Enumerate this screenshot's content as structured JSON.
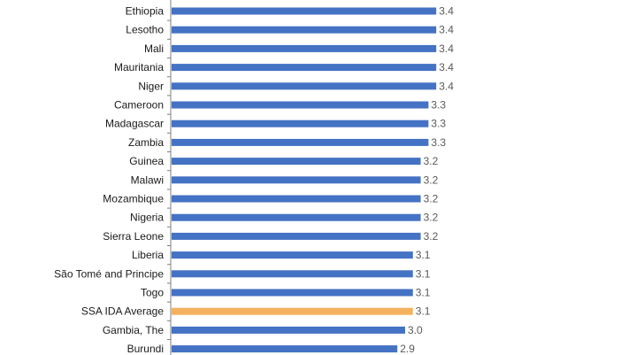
{
  "chart_data": {
    "type": "bar",
    "orientation": "horizontal",
    "categories": [
      "Ethiopia",
      "Lesotho",
      "Mali",
      "Mauritania",
      "Niger",
      "Cameroon",
      "Madagascar",
      "Zambia",
      "Guinea",
      "Malawi",
      "Mozambique",
      "Nigeria",
      "Sierra Leone",
      "Liberia",
      "São Tomé and Principe",
      "Togo",
      "SSA IDA Average",
      "Gambia, The",
      "Burundi"
    ],
    "values": [
      3.4,
      3.4,
      3.4,
      3.4,
      3.4,
      3.3,
      3.3,
      3.3,
      3.2,
      3.2,
      3.2,
      3.2,
      3.2,
      3.1,
      3.1,
      3.1,
      3.1,
      3.0,
      2.9
    ],
    "value_labels": [
      "3.4",
      "3.4",
      "3.4",
      "3.4",
      "3.4",
      "3.3",
      "3.3",
      "3.3",
      "3.2",
      "3.2",
      "3.2",
      "3.2",
      "3.2",
      "3.1",
      "3.1",
      "3.1",
      "3.1",
      "3.0",
      "2.9"
    ],
    "highlight_category": "SSA IDA Average",
    "colors": {
      "bar": "#4472C4",
      "highlight": "#F4B261",
      "axis": "#7f7f7f"
    },
    "title": "",
    "xlabel": "",
    "ylabel": "",
    "grid": false,
    "legend": "none"
  }
}
